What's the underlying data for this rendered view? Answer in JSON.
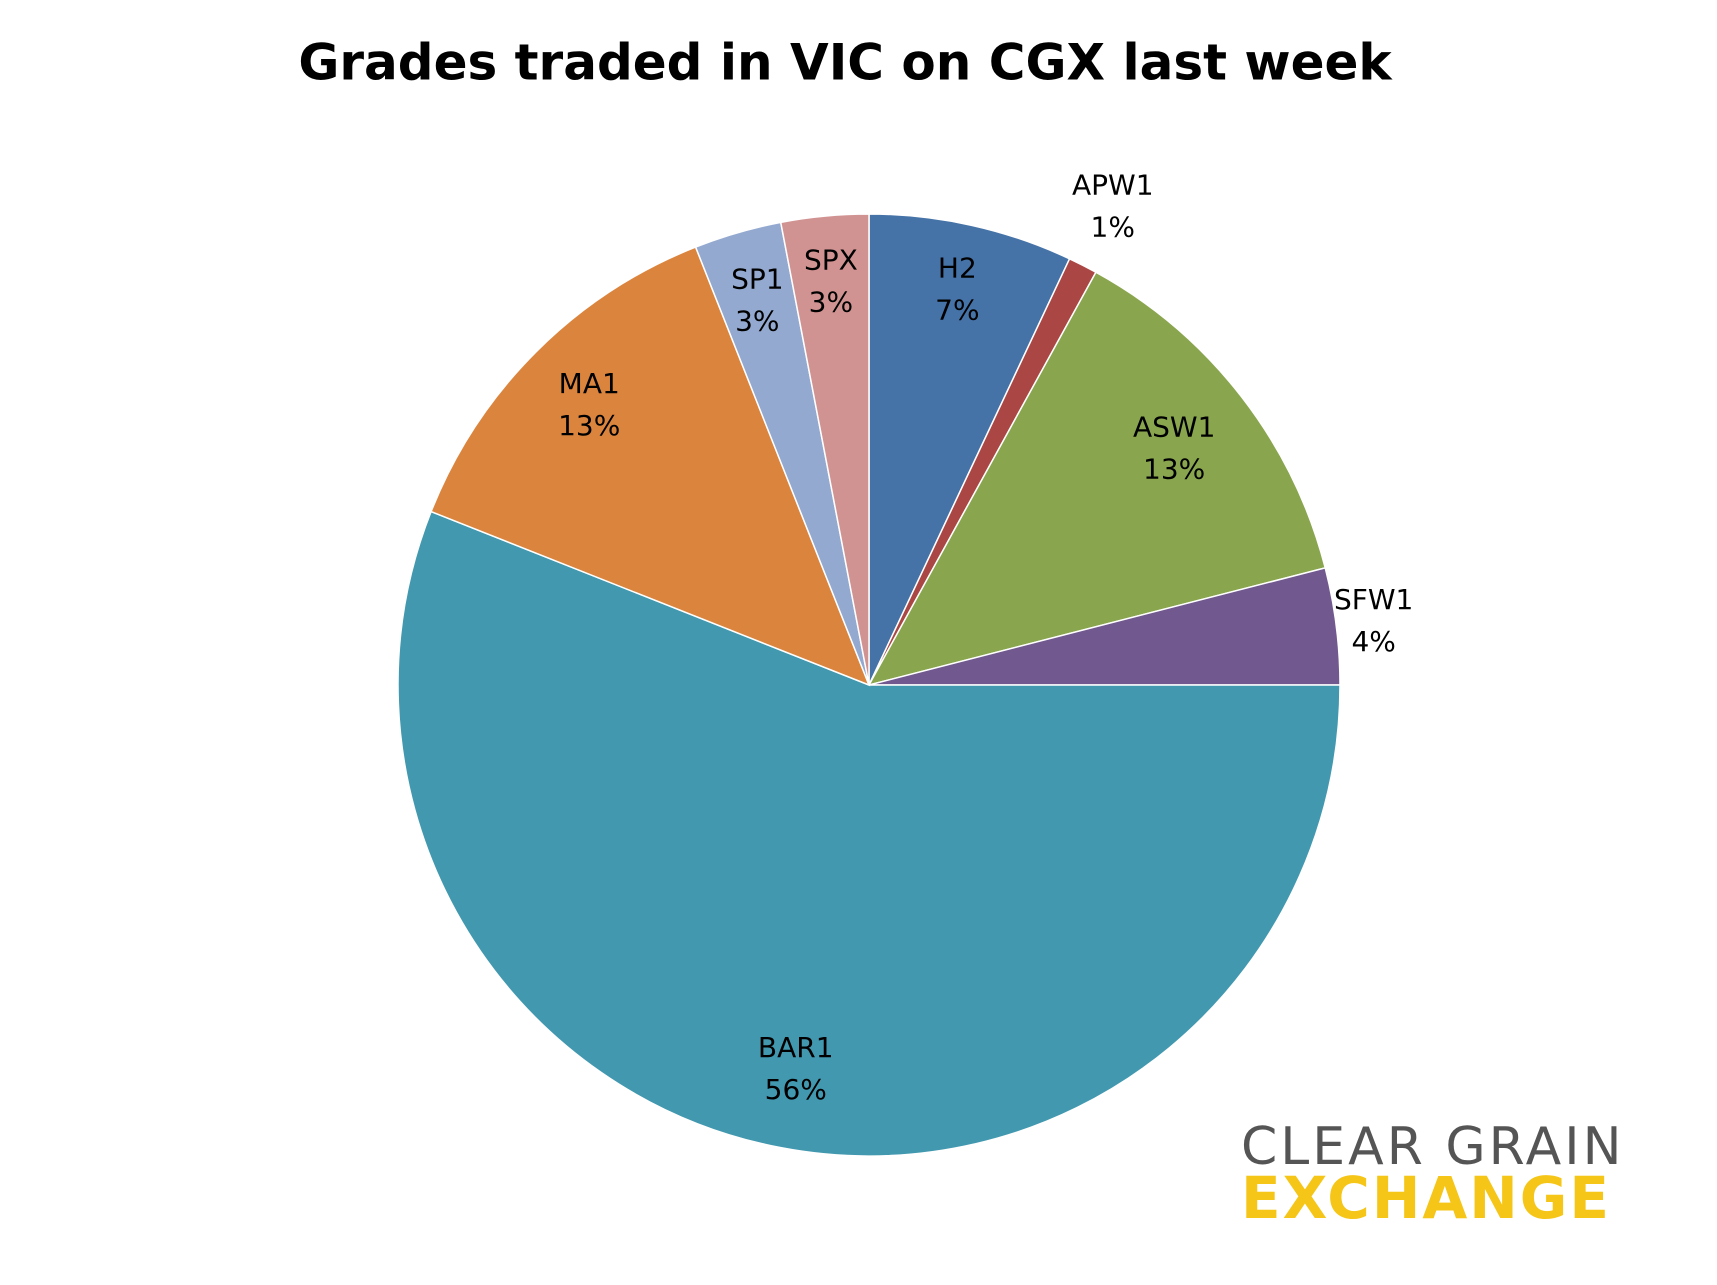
{
  "chart_data": {
    "type": "pie",
    "title": "Grades traded in VIC on CGX last week",
    "categories": [
      "H2",
      "APW1",
      "ASW1",
      "SFW1",
      "BAR1",
      "MA1",
      "SP1",
      "SPX"
    ],
    "values": [
      7,
      1,
      13,
      4,
      56,
      13,
      3,
      3
    ],
    "value_labels": [
      "7%",
      "1%",
      "13%",
      "4%",
      "56%",
      "13%",
      "3%",
      "3%"
    ],
    "colors": [
      "#4572a7",
      "#aa4643",
      "#89a54e",
      "#71588f",
      "#4198af",
      "#db843d",
      "#93a9cf",
      "#d19392"
    ]
  },
  "logo": {
    "line1": "CLEAR GRAIN",
    "line2": "EXCHANGE"
  }
}
